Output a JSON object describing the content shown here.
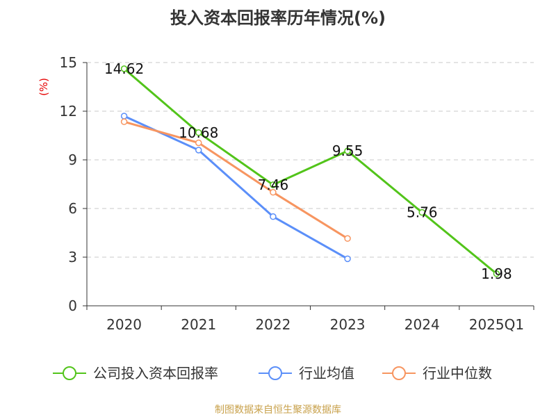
{
  "chart_data": {
    "type": "line",
    "title": "投入资本回报率历年情况(%)",
    "unit_label": "(%)",
    "categories": [
      "2020",
      "2021",
      "2022",
      "2023",
      "2024",
      "2025Q1"
    ],
    "ylim": [
      0,
      15
    ],
    "yticks": [
      0,
      3,
      6,
      9,
      12,
      15
    ],
    "grid": true,
    "legend_position": "bottom",
    "series": [
      {
        "name": "公司投入资本回报率",
        "color": "#52c41a",
        "values": [
          14.62,
          10.68,
          7.46,
          9.55,
          5.76,
          1.98
        ],
        "labels": [
          "14.62",
          "10.68",
          "7.46",
          "9.55",
          "5.76",
          "1.98"
        ],
        "show_labels": true
      },
      {
        "name": "行业均值",
        "color": "#5b8ff9",
        "values": [
          11.7,
          9.6,
          5.5,
          2.9,
          null,
          null
        ],
        "show_labels": false
      },
      {
        "name": "行业中位数",
        "color": "#f79560",
        "values": [
          11.35,
          10.05,
          7.0,
          4.15,
          null,
          null
        ],
        "show_labels": false
      }
    ]
  },
  "source": "制图数据来自恒生聚源数据库"
}
